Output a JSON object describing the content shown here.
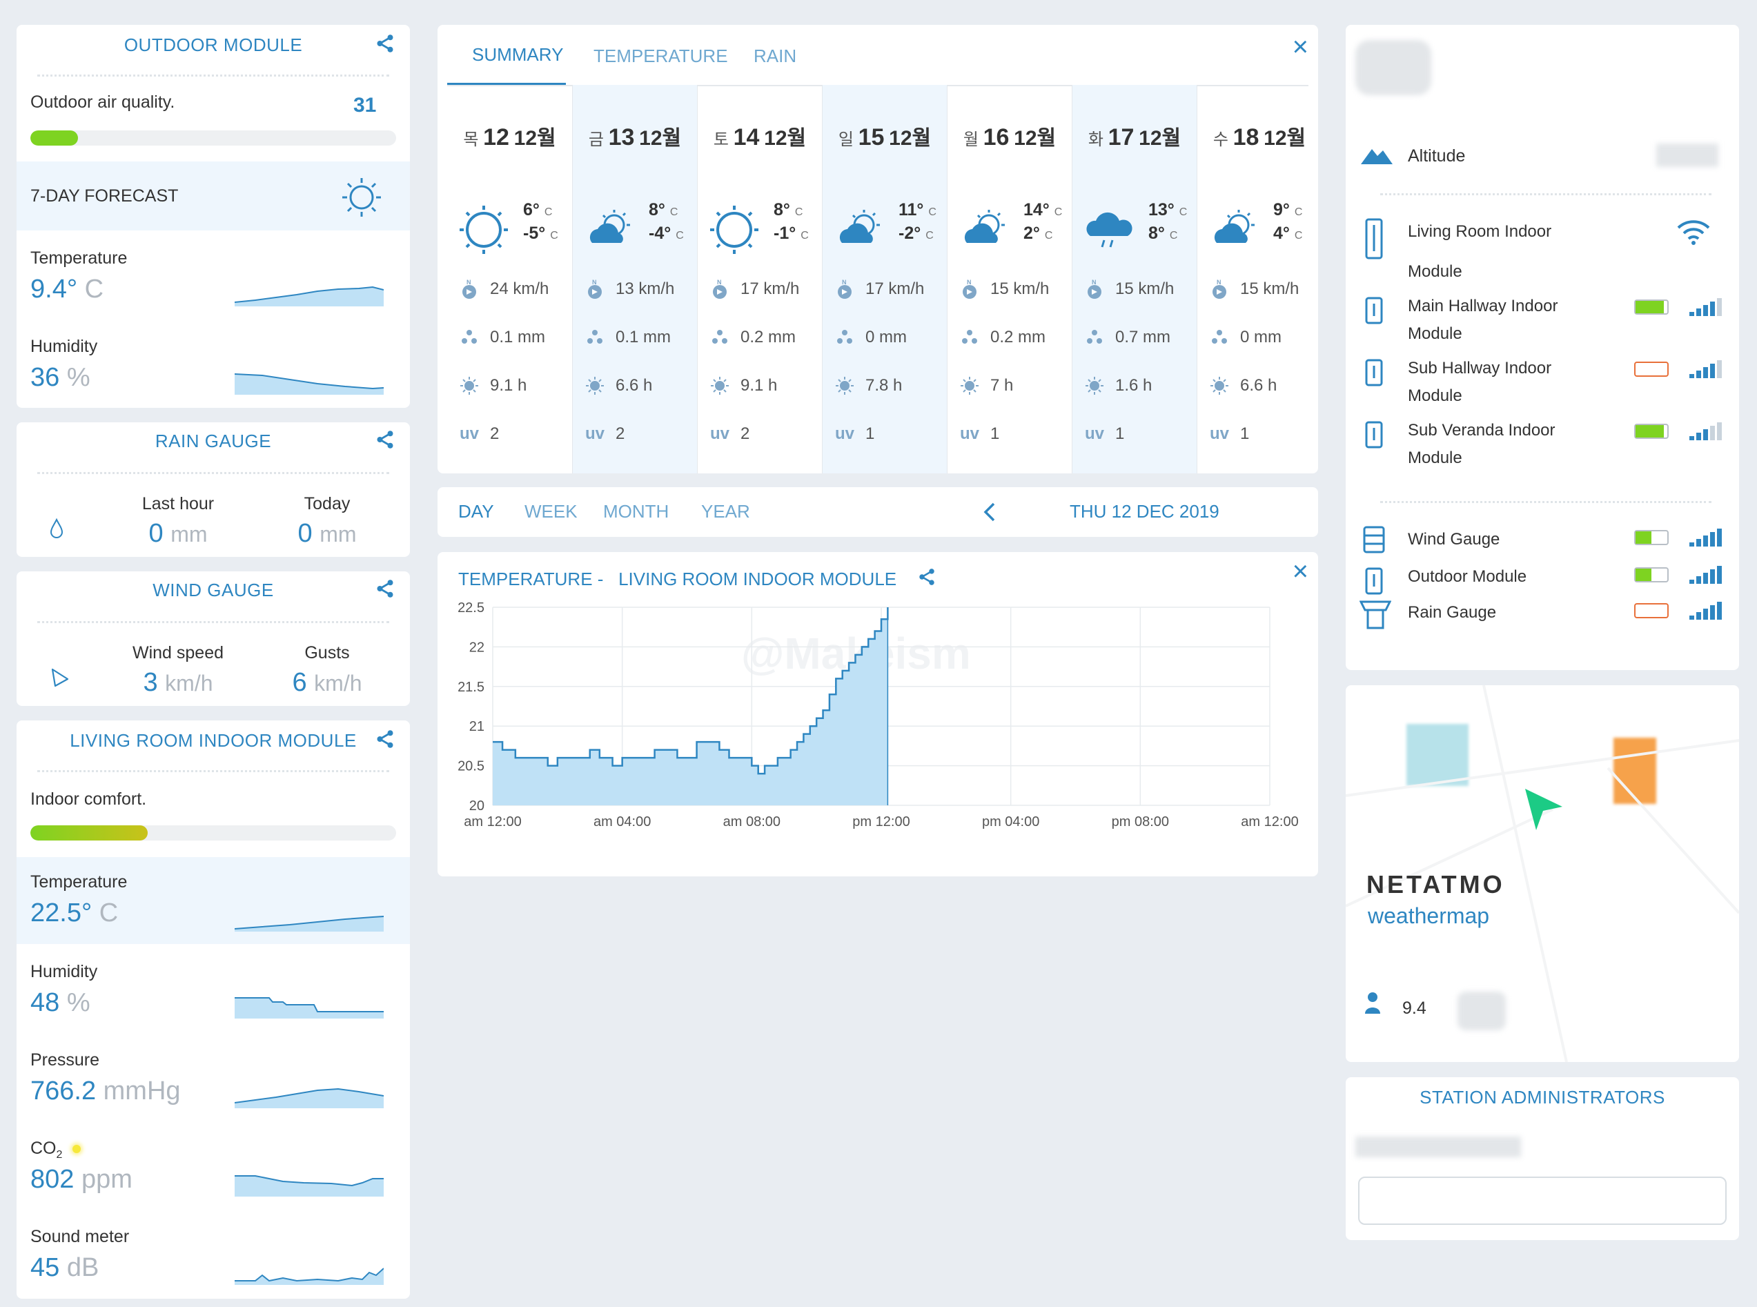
{
  "outdoor": {
    "title": "OUTDOOR MODULE",
    "air_label": "Outdoor air quality.",
    "air_value": "31",
    "air_level": 0.13,
    "forecast_label": "7-DAY FORECAST",
    "temp_label": "Temperature",
    "temp_value": "9.4°",
    "temp_unit": "C",
    "hum_label": "Humidity",
    "hum_value": "36",
    "hum_unit": "%"
  },
  "rain": {
    "title": "RAIN GAUGE",
    "last_hour_label": "Last hour",
    "today_label": "Today",
    "last_hour_value": "0",
    "today_value": "0",
    "unit": "mm"
  },
  "wind": {
    "title": "WIND GAUGE",
    "speed_label": "Wind speed",
    "gusts_label": "Gusts",
    "speed_value": "3",
    "gusts_value": "6",
    "unit": "km/h"
  },
  "indoor": {
    "title": "LIVING ROOM INDOOR MODULE",
    "comfort_label": "Indoor comfort.",
    "comfort_level": 0.32,
    "temp_label": "Temperature",
    "temp_value": "22.5°",
    "temp_unit": "C",
    "hum_label": "Humidity",
    "hum_value": "48",
    "hum_unit": "%",
    "pressure_label": "Pressure",
    "pressure_value": "766.2",
    "pressure_unit": "mmHg",
    "co2_label": "CO",
    "co2_sub": "2",
    "co2_value": "802",
    "co2_unit": "ppm",
    "sound_label": "Sound meter",
    "sound_value": "45",
    "sound_unit": "dB"
  },
  "forecast": {
    "tabs": [
      "SUMMARY",
      "TEMPERATURE",
      "RAIN"
    ],
    "close_icon": "×",
    "days": [
      {
        "dow": "목",
        "day": "12",
        "month": "12월",
        "icon": "sun",
        "hi": "6°",
        "lo": "-5°",
        "wind": "24 km/h",
        "rain": "0.1 mm",
        "sun": "9.1 h",
        "uv": "2"
      },
      {
        "dow": "금",
        "day": "13",
        "month": "12월",
        "icon": "partly-cloudy",
        "hi": "8°",
        "lo": "-4°",
        "wind": "13 km/h",
        "rain": "0.1 mm",
        "sun": "6.6 h",
        "uv": "2"
      },
      {
        "dow": "토",
        "day": "14",
        "month": "12월",
        "icon": "sun",
        "hi": "8°",
        "lo": "-1°",
        "wind": "17 km/h",
        "rain": "0.2 mm",
        "sun": "9.1 h",
        "uv": "2"
      },
      {
        "dow": "일",
        "day": "15",
        "month": "12월",
        "icon": "partly-cloudy",
        "hi": "11°",
        "lo": "-2°",
        "wind": "17 km/h",
        "rain": "0 mm",
        "sun": "7.8 h",
        "uv": "1"
      },
      {
        "dow": "월",
        "day": "16",
        "month": "12월",
        "icon": "partly-cloudy",
        "hi": "14°",
        "lo": "2°",
        "wind": "15 km/h",
        "rain": "0.2 mm",
        "sun": "7 h",
        "uv": "1"
      },
      {
        "dow": "화",
        "day": "17",
        "month": "12월",
        "icon": "rain",
        "hi": "13°",
        "lo": "8°",
        "wind": "15 km/h",
        "rain": "0.7 mm",
        "sun": "1.6 h",
        "uv": "1"
      },
      {
        "dow": "수",
        "day": "18",
        "month": "12월",
        "icon": "partly-cloudy",
        "hi": "9°",
        "lo": "4°",
        "wind": "15 km/h",
        "rain": "0 mm",
        "sun": "6.6 h",
        "uv": "1"
      }
    ],
    "temp_unit": "C",
    "uv_label": "uv"
  },
  "range": {
    "tabs": [
      "DAY",
      "WEEK",
      "MONTH",
      "YEAR"
    ],
    "date": "THU 12 DEC 2019"
  },
  "graph": {
    "title": "TEMPERATURE -   LIVING ROOM INDOOR MODULE",
    "watermark": "@Makeism"
  },
  "chart_data": {
    "type": "area",
    "x_ticks": [
      "am 12:00",
      "am 04:00",
      "am 08:00",
      "pm 12:00",
      "pm 04:00",
      "pm 08:00",
      "am 12:00"
    ],
    "y_ticks": [
      "22.5",
      "22",
      "21.5",
      "21",
      "20.5",
      "20"
    ],
    "ylim": [
      20,
      22.5
    ],
    "xlim": [
      0,
      24
    ],
    "grid": true,
    "series": [
      {
        "x": [
          0,
          0.3,
          0.7,
          1.0,
          1.3,
          1.7,
          2.0,
          2.3,
          2.7,
          3.0,
          3.3,
          3.7,
          4.0,
          4.3,
          4.7,
          5.0,
          5.3,
          5.7,
          6.0,
          6.3,
          6.7,
          7.0,
          7.3,
          7.7,
          8.0,
          8.2,
          8.4,
          8.6,
          8.8,
          9.0,
          9.2,
          9.4,
          9.6,
          9.8,
          10.0,
          10.2,
          10.4,
          10.6,
          10.8,
          11.0,
          11.2,
          11.4,
          11.6,
          11.8,
          12.0,
          12.2
        ],
        "y": [
          20.8,
          20.7,
          20.6,
          20.6,
          20.6,
          20.5,
          20.6,
          20.6,
          20.6,
          20.7,
          20.6,
          20.5,
          20.6,
          20.6,
          20.6,
          20.7,
          20.7,
          20.6,
          20.6,
          20.8,
          20.8,
          20.7,
          20.6,
          20.6,
          20.5,
          20.4,
          20.5,
          20.5,
          20.6,
          20.6,
          20.7,
          20.8,
          20.9,
          21.0,
          21.1,
          21.2,
          21.4,
          21.6,
          21.7,
          21.8,
          21.9,
          22.0,
          22.1,
          22.2,
          22.35,
          22.5
        ]
      }
    ]
  },
  "modules": {
    "altitude_label": "Altitude",
    "items": [
      {
        "name_line1": "Living Room Indoor",
        "name_line2": "Module",
        "status": "wifi"
      },
      {
        "name_line1": "Main Hallway Indoor",
        "name_line2": "Module",
        "battery": "green",
        "battery_level": 0.9,
        "signal": 4
      },
      {
        "name_line1": "Sub Hallway Indoor",
        "name_line2": "Module",
        "battery": "orange",
        "battery_level": 0.0,
        "signal": 4
      },
      {
        "name_line1": "Sub Veranda Indoor",
        "name_line2": "Module",
        "battery": "green",
        "battery_level": 0.9,
        "signal": 3
      },
      {
        "name_line1": "Wind Gauge",
        "name_line2": "",
        "battery": "green",
        "battery_level": 0.5,
        "signal": 5
      },
      {
        "name_line1": "Outdoor Module",
        "name_line2": "",
        "battery": "green",
        "battery_level": 0.5,
        "signal": 5
      },
      {
        "name_line1": "Rain Gauge",
        "name_line2": "",
        "battery": "orange",
        "battery_level": 0.0,
        "signal": 5
      }
    ],
    "colors": {
      "green": "#7ed321",
      "orange": "#f5a25d",
      "orange_border": "#e8703a",
      "blue": "#2e86c1"
    }
  },
  "map": {
    "brand": "NETATMO",
    "product": "weathermap",
    "temp_value": "9.4"
  },
  "admins": {
    "title": "STATION ADMINISTRATORS"
  }
}
